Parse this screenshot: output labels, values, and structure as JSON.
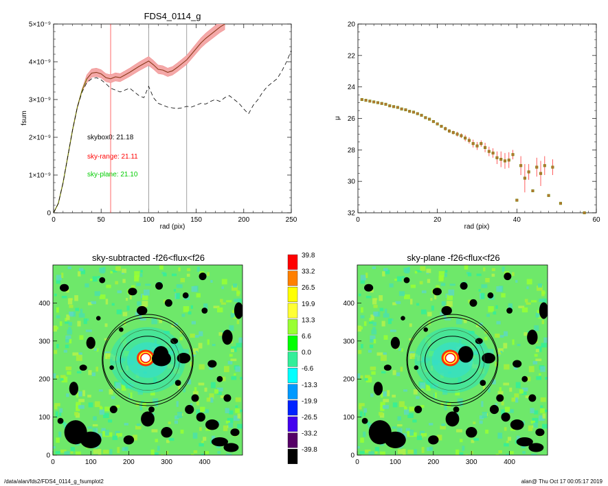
{
  "footer": {
    "path": "/data/alan/fds2/FDS4_0114_g_fsumplot2",
    "stamp": "alan@  Thu Oct 17 00:05:17 2019"
  },
  "colors": {
    "red": "#ff0000",
    "green": "#00dd00",
    "pink": "#f4a0a0",
    "brown": "#8b4513"
  },
  "chart_data": [
    {
      "type": "line",
      "title": "FDS4_0114_g",
      "xlabel": "rad (pix)",
      "ylabel": "fsum",
      "xlim": [
        0,
        250
      ],
      "ylim": [
        0,
        5e-09
      ],
      "xticks": [
        "0",
        "50",
        "100",
        "150",
        "200",
        "250"
      ],
      "yticks": [
        "0",
        "1×10⁻⁹",
        "2×10⁻⁹",
        "3×10⁻⁹",
        "4×10⁻⁹",
        "5×10⁻⁹"
      ],
      "vlines": [
        {
          "x": 60,
          "color": "red"
        },
        {
          "x": 100,
          "color": "gray"
        },
        {
          "x": 140,
          "color": "gray"
        }
      ],
      "annotations": [
        {
          "text": "skybox0: 21.18",
          "color": "black"
        },
        {
          "text": "sky-range: 21.11",
          "color": "red"
        },
        {
          "text": "sky-plane: 21.10",
          "color": "green"
        }
      ],
      "series": [
        {
          "style": "solid-with-band",
          "x": [
            0,
            5,
            10,
            15,
            20,
            25,
            30,
            35,
            40,
            45,
            50,
            55,
            60,
            65,
            70,
            75,
            80,
            85,
            90,
            95,
            100,
            105,
            110,
            115,
            120,
            125,
            130,
            135,
            140,
            145,
            150,
            155,
            160,
            165,
            170,
            175,
            180
          ],
          "y": [
            0,
            2.5e-10,
            8e-10,
            1.5e-09,
            2.2e-09,
            2.8e-09,
            3.25e-09,
            3.55e-09,
            3.7e-09,
            3.72e-09,
            3.68e-09,
            3.58e-09,
            3.55e-09,
            3.6e-09,
            3.58e-09,
            3.65e-09,
            3.72e-09,
            3.8e-09,
            3.88e-09,
            3.95e-09,
            4.02e-09,
            3.92e-09,
            3.8e-09,
            3.78e-09,
            3.72e-09,
            3.76e-09,
            3.85e-09,
            3.95e-09,
            4.05e-09,
            4.2e-09,
            4.35e-09,
            4.5e-09,
            4.62e-09,
            4.72e-09,
            4.82e-09,
            4.92e-09,
            5e-09
          ]
        },
        {
          "style": "dashed",
          "x": [
            0,
            5,
            10,
            15,
            20,
            25,
            30,
            35,
            40,
            45,
            50,
            55,
            60,
            65,
            70,
            75,
            80,
            85,
            90,
            95,
            100,
            105,
            110,
            115,
            120,
            125,
            130,
            135,
            140,
            145,
            150,
            155,
            160,
            165,
            170,
            175,
            180,
            185,
            190,
            195,
            200,
            205,
            210,
            215,
            220,
            225,
            230,
            235,
            240,
            245,
            250
          ],
          "y": [
            0,
            2.5e-10,
            8e-10,
            1.5e-09,
            2.2e-09,
            2.8e-09,
            3.2e-09,
            3.45e-09,
            3.55e-09,
            3.58e-09,
            3.52e-09,
            3.42e-09,
            3.3e-09,
            3.25e-09,
            3.2e-09,
            3.25e-09,
            3.3e-09,
            3.2e-09,
            3.1e-09,
            3.05e-09,
            3.35e-09,
            3.05e-09,
            2.9e-09,
            2.85e-09,
            2.8e-09,
            2.78e-09,
            2.76e-09,
            2.78e-09,
            2.82e-09,
            2.8e-09,
            2.85e-09,
            2.9e-09,
            2.88e-09,
            2.95e-09,
            3e-09,
            2.95e-09,
            3.05e-09,
            3.1e-09,
            3e-09,
            2.9e-09,
            2.75e-09,
            2.62e-09,
            2.85e-09,
            3e-09,
            3.2e-09,
            3.35e-09,
            3.45e-09,
            3.55e-09,
            3.75e-09,
            4e-09,
            4.3e-09
          ]
        }
      ]
    },
    {
      "type": "scatter",
      "title": "",
      "xlabel": "rad (pix)",
      "ylabel": "μ",
      "xlim": [
        0,
        60
      ],
      "ylim": [
        32,
        20
      ],
      "xticks": [
        "0",
        "20",
        "40",
        "60"
      ],
      "yticks": [
        "20",
        "22",
        "24",
        "26",
        "28",
        "30",
        "32"
      ],
      "points": {
        "x": [
          1,
          2,
          3,
          4,
          5,
          6,
          7,
          8,
          9,
          10,
          11,
          12,
          13,
          14,
          15,
          16,
          17,
          18,
          19,
          20,
          21,
          22,
          23,
          24,
          25,
          26,
          27,
          28,
          29,
          30,
          31,
          32,
          33,
          34,
          35,
          36,
          37,
          38,
          39,
          40,
          41,
          42,
          43,
          44,
          45,
          46,
          47,
          48,
          49,
          51,
          57
        ],
        "y": [
          24.8,
          24.85,
          24.9,
          24.95,
          25.0,
          25.05,
          25.1,
          25.2,
          25.25,
          25.3,
          25.4,
          25.45,
          25.55,
          25.6,
          25.7,
          25.8,
          25.95,
          26.05,
          26.2,
          26.35,
          26.5,
          26.65,
          26.8,
          26.9,
          27.0,
          27.1,
          27.25,
          27.4,
          27.6,
          27.75,
          27.6,
          27.85,
          28.1,
          28.2,
          28.5,
          28.6,
          28.7,
          28.65,
          28.3,
          31.2,
          29.0,
          29.8,
          29.4,
          30.6,
          29.1,
          29.5,
          29.0,
          30.9,
          29.1,
          31.4,
          32.0
        ],
        "err": [
          0.05,
          0.05,
          0.05,
          0.05,
          0.05,
          0.05,
          0.05,
          0.05,
          0.05,
          0.05,
          0.05,
          0.05,
          0.05,
          0.05,
          0.05,
          0.08,
          0.08,
          0.08,
          0.1,
          0.1,
          0.1,
          0.12,
          0.12,
          0.12,
          0.15,
          0.15,
          0.2,
          0.2,
          0.25,
          0.25,
          0.2,
          0.3,
          0.3,
          0.3,
          0.4,
          0.5,
          0.5,
          0.5,
          0.3,
          0.1,
          0.6,
          0.9,
          0.5,
          0.1,
          0.6,
          0.8,
          0.6,
          0.1,
          0.5,
          0.05,
          0.05
        ]
      }
    },
    {
      "type": "heatmap",
      "title": "sky-subtracted -f26<flux<f26",
      "xlim": [
        0,
        500
      ],
      "ylim": [
        0,
        500
      ],
      "xticks": [
        "0",
        "100",
        "200",
        "300",
        "400"
      ],
      "yticks": [
        "0",
        "100",
        "200",
        "300",
        "400"
      ],
      "center": [
        250,
        250
      ],
      "ellipses": [
        [
          120,
          110
        ],
        [
          200,
          200
        ],
        [
          140,
          140
        ]
      ]
    },
    {
      "type": "heatmap",
      "title": "sky-plane -f26<flux<f26",
      "xlim": [
        0,
        500
      ],
      "ylim": [
        0,
        500
      ],
      "xticks": [
        "0",
        "100",
        "200",
        "300",
        "400"
      ],
      "yticks": [
        "0",
        "100",
        "200",
        "300",
        "400"
      ],
      "center": [
        250,
        250
      ],
      "ellipses": [
        [
          120,
          110
        ],
        [
          200,
          200
        ],
        [
          140,
          140
        ]
      ]
    },
    {
      "type": "colorbar",
      "labels": [
        "39.8",
        "33.2",
        "26.5",
        "19.9",
        "13.3",
        "6.6",
        "0.0",
        "-6.6",
        "-13.3",
        "-19.9",
        "-26.5",
        "-33.2",
        "-39.8"
      ],
      "colors": [
        "#ff0000",
        "#ff8000",
        "#ffff00",
        "#ffff33",
        "#99ff33",
        "#00ff00",
        "#33ee99",
        "#00ffff",
        "#0099ff",
        "#0022ff",
        "#4400ee",
        "#550066",
        "#000000"
      ]
    }
  ]
}
